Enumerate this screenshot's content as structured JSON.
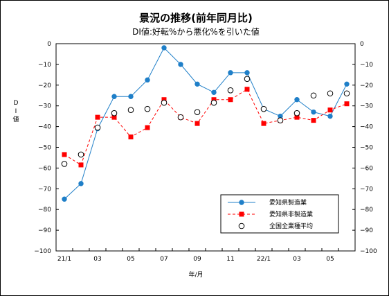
{
  "chart_data": {
    "type": "line",
    "title": "景況の推移(前年同月比)",
    "subtitle": "DI値:好転%から悪化%を引いた値",
    "ylabel": "DI値",
    "xlabel": "年/月",
    "ylim": [
      -100,
      0
    ],
    "yticks": [
      0,
      -10,
      -20,
      -30,
      -40,
      -50,
      -60,
      -70,
      -80,
      -90,
      -100
    ],
    "x_tick_labels": [
      "21/1",
      "03",
      "05",
      "07",
      "09",
      "11",
      "22/1",
      "03",
      "05"
    ],
    "categories": [
      "21/1",
      "21/2",
      "21/3",
      "21/4",
      "21/5",
      "21/6",
      "21/7",
      "21/8",
      "21/9",
      "21/10",
      "21/11",
      "21/12",
      "22/1",
      "22/2",
      "22/3",
      "22/4",
      "22/5",
      "22/6"
    ],
    "grid": false,
    "legend_position": "bottom-right",
    "series": [
      {
        "name": "愛知県製造業",
        "color": "#1f7fc8",
        "marker": "filled-circle",
        "line": "solid",
        "values": [
          -75,
          -67.5,
          -41,
          -25.5,
          -25.5,
          -17.5,
          -2,
          -10,
          -19.5,
          -23.5,
          -14,
          -14,
          -31.5,
          -35,
          -27,
          -33,
          -35,
          -19.5
        ]
      },
      {
        "name": "愛知県非製造業",
        "color": "#ff0000",
        "marker": "filled-square",
        "line": "dashed",
        "values": [
          -53.5,
          -58.5,
          -35.5,
          -35.5,
          -45,
          -40.5,
          -27,
          -35.5,
          -38.5,
          -27,
          -27,
          -22,
          -38.5,
          -37,
          -35.5,
          -37,
          -32,
          -29
        ]
      },
      {
        "name": "全国全業種平均",
        "color": "#000000",
        "marker": "open-circle",
        "line": "none",
        "values": [
          -58,
          -53.5,
          -40.5,
          -33.5,
          -32,
          -31.5,
          -28.5,
          -35.5,
          -33,
          -28.5,
          -22.5,
          -17,
          -31.5,
          -37,
          -33.5,
          -25,
          -24,
          -24
        ]
      }
    ]
  }
}
